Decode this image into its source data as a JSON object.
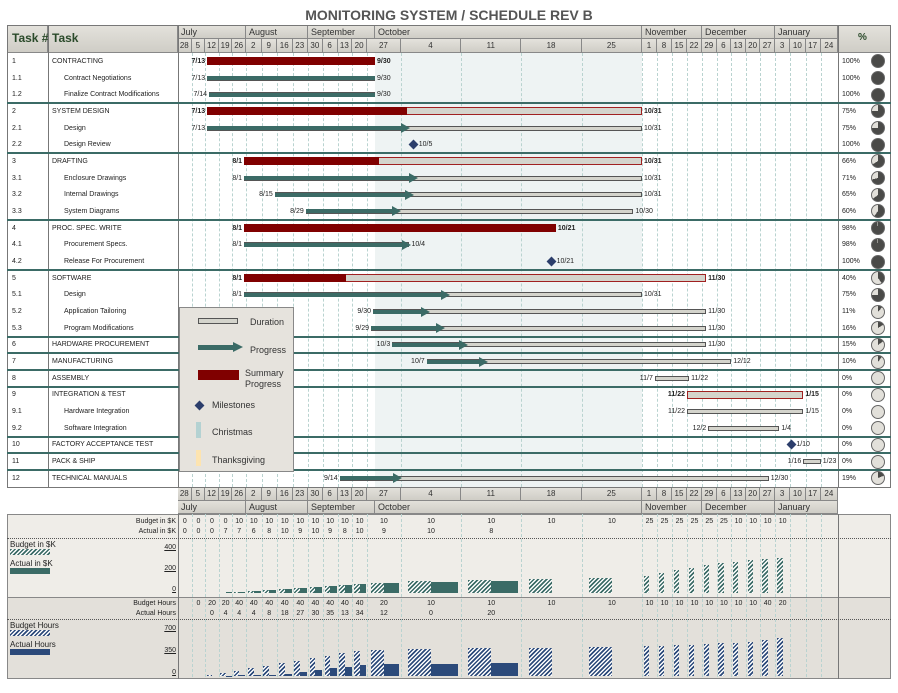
{
  "title": "MONITORING SYSTEM /  SCHEDULE REV B",
  "columns": {
    "task_num": "Task #",
    "task": "Task",
    "pct": "%"
  },
  "timescale": {
    "months": [
      {
        "name": "July",
        "start": "6/28",
        "end": "8/2"
      },
      {
        "name": "August",
        "start": "8/2",
        "end": "8/30"
      },
      {
        "name": "September",
        "start": "8/30",
        "end": "10/1"
      },
      {
        "name": "October",
        "start": "10/1",
        "end": "11/1"
      },
      {
        "name": "November",
        "start": "11/1",
        "end": "11/29"
      },
      {
        "name": "December",
        "start": "11/29",
        "end": "1/3"
      },
      {
        "name": "January",
        "start": "1/3",
        "end": "1/31"
      }
    ],
    "weeks": [
      "6/28",
      "7/5",
      "7/12",
      "7/19",
      "7/26",
      "8/2",
      "8/9",
      "8/16",
      "8/23",
      "8/30",
      "9/6",
      "9/13",
      "9/20",
      "9/27",
      "10/4",
      "10/11",
      "10/18",
      "10/25",
      "11/1",
      "11/8",
      "11/15",
      "11/22",
      "11/29",
      "12/6",
      "12/13",
      "12/20",
      "12/27",
      "1/3",
      "1/10",
      "1/17",
      "1/24"
    ],
    "week_labels": [
      "28",
      "5",
      "12",
      "19",
      "26",
      "2",
      "9",
      "16",
      "23",
      "30",
      "6",
      "13",
      "20",
      "27",
      "4",
      "11",
      "18",
      "25",
      "1",
      "8",
      "15",
      "22",
      "29",
      "6",
      "13",
      "20",
      "27",
      "3",
      "10",
      "17",
      "24"
    ]
  },
  "tasks": [
    {
      "id": "1",
      "name": "CONTRACTING",
      "level": 0,
      "type": "summary",
      "start": "7/13",
      "end": "9/30",
      "progress": 1.0,
      "pct": "100%",
      "pct_value": 100,
      "group_start": true
    },
    {
      "id": "1.1",
      "name": "Contract Negotiations",
      "level": 1,
      "type": "task",
      "start": "7/13",
      "end": "9/30",
      "progress": 1.0,
      "pct": "100%",
      "pct_value": 100
    },
    {
      "id": "1.2",
      "name": "Finalize Contract Modifications",
      "level": 1,
      "type": "task",
      "start": "7/14",
      "end": "9/30",
      "progress": 1.0,
      "pct": "100%",
      "pct_value": 100
    },
    {
      "id": "2",
      "name": "SYSTEM DESIGN",
      "level": 0,
      "type": "summary",
      "start": "7/13",
      "end": "10/31",
      "progress": 0.46,
      "pct": "75%",
      "pct_value": 75,
      "group_start": true
    },
    {
      "id": "2.1",
      "name": "Design",
      "level": 1,
      "type": "task",
      "start": "7/13",
      "end": "10/31",
      "progress": 0.45,
      "pct": "75%",
      "pct_value": 75
    },
    {
      "id": "2.2",
      "name": "Design Review",
      "level": 1,
      "type": "milestone",
      "start": "10/5",
      "end": "10/5",
      "pct": "100%",
      "pct_value": 100
    },
    {
      "id": "3",
      "name": "DRAFTING",
      "level": 0,
      "type": "summary",
      "start": "8/1",
      "end": "10/31",
      "progress": 0.34,
      "pct": "66%",
      "pct_value": 66,
      "group_start": true
    },
    {
      "id": "3.1",
      "name": "Enclosure Drawings",
      "level": 1,
      "type": "task",
      "start": "8/1",
      "end": "10/31",
      "progress": 0.42,
      "pct": "71%",
      "pct_value": 71
    },
    {
      "id": "3.2",
      "name": "Internal Drawings",
      "level": 1,
      "type": "task",
      "start": "8/15",
      "end": "10/31",
      "progress": 0.36,
      "pct": "65%",
      "pct_value": 65
    },
    {
      "id": "3.3",
      "name": "System Diagrams",
      "level": 1,
      "type": "task",
      "start": "8/29",
      "end": "10/30",
      "progress": 0.27,
      "pct": "60%",
      "pct_value": 60
    },
    {
      "id": "4",
      "name": "PROC.  SPEC. WRITE",
      "level": 0,
      "type": "summary",
      "start": "8/1",
      "end": "10/21",
      "progress": 1.0,
      "pct": "98%",
      "pct_value": 98,
      "group_start": true
    },
    {
      "id": "4.1",
      "name": "Procurement Specs.",
      "level": 1,
      "type": "task",
      "start": "8/1",
      "end": "10/4",
      "progress": 0.97,
      "pct": "98%",
      "pct_value": 98
    },
    {
      "id": "4.2",
      "name": "Release For Procurement",
      "level": 1,
      "type": "milestone",
      "start": "10/21",
      "end": "10/21",
      "pct": "100%",
      "pct_value": 100
    },
    {
      "id": "5",
      "name": "SOFTWARE",
      "level": 0,
      "type": "summary",
      "start": "8/1",
      "end": "11/30",
      "progress": 0.22,
      "pct": "40%",
      "pct_value": 40,
      "group_start": true
    },
    {
      "id": "5.1",
      "name": "Design",
      "level": 1,
      "type": "task",
      "start": "8/1",
      "end": "10/31",
      "progress": 0.5,
      "pct": "75%",
      "pct_value": 75
    },
    {
      "id": "5.2",
      "name": "Application Tailoring",
      "level": 1,
      "type": "task",
      "start": "9/30",
      "end": "11/30",
      "progress": 0.15,
      "pct": "11%",
      "pct_value": 11
    },
    {
      "id": "5.3",
      "name": "Program Modifications",
      "level": 1,
      "type": "task",
      "start": "9/29",
      "end": "11/30",
      "progress": 0.2,
      "pct": "16%",
      "pct_value": 16
    },
    {
      "id": "6",
      "name": "HARDWARE PROCUREMENT",
      "level": 0,
      "type": "task",
      "start": "10/3",
      "end": "11/30",
      "progress": 0.22,
      "pct": "15%",
      "pct_value": 15,
      "group_start": true
    },
    {
      "id": "7",
      "name": "MANUFACTURING",
      "level": 0,
      "type": "task",
      "start": "10/7",
      "end": "12/12",
      "progress": 0.18,
      "pct": "10%",
      "pct_value": 10,
      "group_start": true
    },
    {
      "id": "8",
      "name": "ASSEMBLY",
      "level": 0,
      "type": "task",
      "start": "11/7",
      "end": "11/22",
      "progress": 0,
      "pct": "0%",
      "pct_value": 0,
      "group_start": true
    },
    {
      "id": "9",
      "name": "INTEGRATION & TEST",
      "level": 0,
      "type": "summary",
      "start": "11/22",
      "end": "1/15",
      "progress": 0,
      "pct": "0%",
      "pct_value": 0,
      "group_start": true
    },
    {
      "id": "9.1",
      "name": "Hardware Integration",
      "level": 1,
      "type": "task",
      "start": "11/22",
      "end": "1/15",
      "progress": 0,
      "pct": "0%",
      "pct_value": 0
    },
    {
      "id": "9.2",
      "name": "Software Integration",
      "level": 1,
      "type": "task",
      "start": "12/2",
      "end": "1/4",
      "progress": 0,
      "pct": "0%",
      "pct_value": 0
    },
    {
      "id": "10",
      "name": "FACTORY ACCEPTANCE TEST",
      "level": 0,
      "type": "milestone",
      "start": "1/10",
      "end": "1/10",
      "pct": "0%",
      "pct_value": 0,
      "group_start": true
    },
    {
      "id": "11",
      "name": "PACK & SHIP",
      "level": 0,
      "type": "task",
      "start": "1/16",
      "end": "1/23",
      "progress": 0,
      "pct": "0%",
      "pct_value": 0,
      "group_start": true
    },
    {
      "id": "12",
      "name": "TECHNICAL MANUALS",
      "level": 0,
      "type": "task",
      "start": "9/14",
      "end": "12/30",
      "progress": 0.13,
      "pct": "19%",
      "pct_value": 19,
      "group_start": true
    }
  ],
  "legend": {
    "duration": "Duration",
    "progress": "Progress",
    "summary1": "Summary",
    "summary2": "Progress",
    "milestones": "Milestones",
    "christmas": "Christmas",
    "thanksgiving": "Thanksgiving"
  },
  "chart_data": {
    "type": "bar",
    "x": [
      "6/28",
      "7/5",
      "7/12",
      "7/19",
      "7/26",
      "8/2",
      "8/9",
      "8/16",
      "8/23",
      "8/30",
      "9/6",
      "9/13",
      "9/20",
      "9/27",
      "10/4",
      "10/11",
      "10/18",
      "10/25",
      "11/1",
      "11/8",
      "11/15",
      "11/22",
      "11/29",
      "12/6",
      "12/13",
      "12/20",
      "12/27",
      "1/3",
      "1/10",
      "1/17",
      "1/24"
    ],
    "cost": {
      "budget_label": "Budget in $K",
      "actual_label": "Actual in $K",
      "ticks": [
        "0",
        "200",
        "400"
      ],
      "ylim": [
        0,
        400
      ],
      "budget": [
        0,
        0,
        0,
        0,
        10,
        10,
        10,
        10,
        10,
        10,
        10,
        10,
        10,
        10,
        10,
        10,
        10,
        10,
        25,
        25,
        25,
        25,
        25,
        25,
        10,
        10,
        10,
        10,
        null,
        null,
        null
      ],
      "actual": [
        0,
        0,
        0,
        7,
        7,
        6,
        8,
        10,
        9,
        10,
        9,
        8,
        10,
        9,
        10,
        8,
        null,
        null,
        null,
        null,
        null,
        null,
        null,
        null,
        null,
        null,
        null,
        null,
        null,
        null,
        null
      ]
    },
    "hours": {
      "budget_label": "Budget Hours",
      "actual_label": "Actual Hours",
      "ticks": [
        "0",
        "350",
        "700"
      ],
      "ylim": [
        0,
        700
      ],
      "budget": [
        null,
        0,
        20,
        20,
        40,
        40,
        40,
        40,
        40,
        40,
        40,
        40,
        40,
        20,
        10,
        10,
        10,
        10,
        10,
        10,
        10,
        10,
        10,
        10,
        10,
        10,
        40,
        20,
        null,
        null,
        null
      ],
      "actual": [
        null,
        null,
        0,
        4,
        4,
        4,
        8,
        18,
        27,
        30,
        35,
        13,
        34,
        12,
        0,
        20,
        null,
        null,
        null,
        null,
        null,
        null,
        null,
        null,
        null,
        null,
        null,
        null,
        null,
        null,
        null
      ]
    },
    "bars": "cumulative"
  },
  "colors": {
    "summary": "#800000",
    "progress": "#3b6b66",
    "duration": "#d4d4cc",
    "milestone": "#2c3e6b",
    "christmas": "#b4d2d2",
    "thanksgiving": "#fde4b0",
    "hours": "#2c4a7a"
  }
}
